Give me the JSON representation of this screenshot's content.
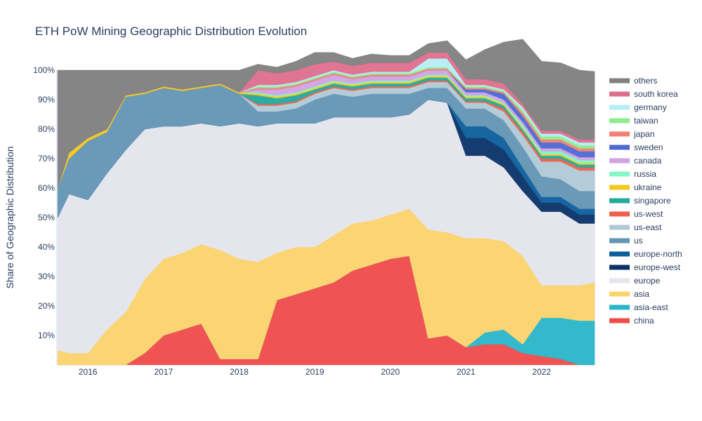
{
  "chart_data": {
    "type": "area",
    "stacked": true,
    "normalized": "percent",
    "title": "ETH PoW Mining Geographic Distribution Evolution",
    "xlabel": "",
    "ylabel": "Share of Geographic Distribution",
    "xlim": [
      2015.58,
      2022.71
    ],
    "ylim": [
      0,
      100
    ],
    "x_ticks": [
      "2016",
      "2017",
      "2018",
      "2019",
      "2020",
      "2021",
      "2022"
    ],
    "x_tick_values": [
      2016,
      2017,
      2018,
      2019,
      2020,
      2021,
      2022
    ],
    "y_ticks": [
      "10%",
      "20%",
      "30%",
      "40%",
      "50%",
      "60%",
      "70%",
      "80%",
      "90%",
      "100%"
    ],
    "y_tick_values": [
      10,
      20,
      30,
      40,
      50,
      60,
      70,
      80,
      90,
      100
    ],
    "grid": false,
    "legend_position": "right",
    "x": [
      2015.6,
      2015.75,
      2016.0,
      2016.25,
      2016.5,
      2016.75,
      2017.0,
      2017.25,
      2017.5,
      2017.75,
      2018.0,
      2018.25,
      2018.5,
      2018.75,
      2019.0,
      2019.25,
      2019.5,
      2019.75,
      2020.0,
      2020.25,
      2020.5,
      2020.75,
      2021.0,
      2021.25,
      2021.5,
      2021.75,
      2022.0,
      2022.25,
      2022.5,
      2022.7
    ],
    "series": [
      {
        "name": "china",
        "color": "#ef4b4b",
        "values": [
          0,
          0,
          0,
          0,
          0,
          4,
          10,
          12,
          14,
          2,
          2,
          2,
          22,
          24,
          26,
          28,
          32,
          34,
          36,
          37,
          9,
          10,
          6,
          7,
          7,
          4,
          3,
          2,
          0,
          0
        ]
      },
      {
        "name": "asia-east",
        "color": "#2ab6c9",
        "values": [
          0,
          0,
          0,
          0,
          0,
          0,
          0,
          0,
          0,
          0,
          0,
          0,
          0,
          0,
          0,
          0,
          0,
          0,
          0,
          0,
          0,
          0,
          0,
          4,
          5,
          3,
          13,
          14,
          15,
          15
        ]
      },
      {
        "name": "asia",
        "color": "#fcd46b",
        "values": [
          5,
          4,
          4,
          12,
          18,
          25,
          26,
          26,
          27,
          37,
          34,
          33,
          16,
          16,
          14,
          16,
          16,
          15,
          15,
          16,
          37,
          35,
          37,
          32,
          30,
          30,
          11,
          11,
          12,
          13
        ]
      },
      {
        "name": "europe",
        "color": "#e5e5ec",
        "values": [
          45,
          54,
          52,
          53,
          55,
          51,
          45,
          43,
          41,
          42,
          46,
          46,
          44,
          42,
          42,
          40,
          36,
          35,
          33,
          32,
          44,
          44,
          28,
          28,
          25,
          22,
          25,
          25,
          21,
          20
        ]
      },
      {
        "name": "europe-west",
        "color": "#0a3366",
        "values": [
          0,
          0,
          0,
          0,
          0,
          0,
          0,
          0,
          0,
          0,
          0,
          0,
          0,
          0,
          0,
          0,
          0,
          0,
          0,
          0,
          0,
          0,
          6,
          6,
          6,
          5,
          3,
          3,
          3,
          3
        ]
      },
      {
        "name": "europe-north",
        "color": "#0c5f9c",
        "values": [
          0,
          0,
          0,
          0,
          0,
          0,
          0,
          0,
          0,
          0,
          0,
          0,
          0,
          0,
          0,
          0,
          0,
          0,
          0,
          0,
          0,
          0,
          4,
          4,
          4,
          3,
          2,
          2,
          2,
          2
        ]
      },
      {
        "name": "us",
        "color": "#6396b4",
        "values": [
          10,
          12,
          20,
          14,
          18,
          12,
          13,
          12,
          12,
          14,
          10,
          5,
          4,
          5,
          8,
          8,
          7,
          8,
          8,
          7,
          4,
          5,
          6,
          6,
          6,
          7,
          7,
          6,
          6,
          6
        ]
      },
      {
        "name": "us-east",
        "color": "#b1c9d6",
        "values": [
          0,
          0,
          0,
          0,
          0,
          0,
          0,
          0,
          0,
          0,
          0,
          2,
          2,
          2,
          2,
          2,
          2,
          2,
          2,
          2,
          2,
          2,
          2,
          2,
          3,
          4,
          5,
          6,
          7,
          7
        ]
      },
      {
        "name": "us-west",
        "color": "#f0604d",
        "values": [
          0,
          0,
          0,
          0,
          0,
          0,
          0,
          0,
          0,
          0,
          0,
          0.5,
          0.5,
          0.5,
          0.5,
          0.5,
          0.5,
          0.5,
          0.5,
          0.5,
          0.5,
          0.5,
          0.5,
          0.5,
          1,
          1,
          1,
          1,
          1,
          1
        ]
      },
      {
        "name": "singapore",
        "color": "#25a99a",
        "values": [
          0,
          0,
          0,
          0,
          0,
          0,
          0,
          0,
          0,
          0,
          0,
          3,
          2,
          2,
          1,
          1,
          1,
          1,
          1,
          1,
          1,
          1,
          1,
          1,
          1,
          1,
          1,
          1,
          1,
          1
        ]
      },
      {
        "name": "ukraine",
        "color": "#f6c81e",
        "values": [
          0,
          2,
          1,
          1,
          0.5,
          0.5,
          0.5,
          0.5,
          0.5,
          0.5,
          0.5,
          0.5,
          0.5,
          0.5,
          0.5,
          0.5,
          0.5,
          0.5,
          0.5,
          0.5,
          0.5,
          0.5,
          0.5,
          0.5,
          0.5,
          0.5,
          0.5,
          0.5,
          0.5,
          0.5
        ]
      },
      {
        "name": "russia",
        "color": "#83f7c4",
        "values": [
          0,
          0,
          0,
          0,
          0,
          0,
          0,
          0,
          0,
          0,
          0,
          0.5,
          0.5,
          0.5,
          0.5,
          0.5,
          0.5,
          0.5,
          0.5,
          0.5,
          0.5,
          0.5,
          0.5,
          0.5,
          0.5,
          1,
          1,
          1,
          1,
          1
        ]
      },
      {
        "name": "canada",
        "color": "#d3a2e3",
        "values": [
          0,
          0,
          0,
          0,
          0,
          0,
          0,
          0,
          0,
          0,
          0,
          1,
          2,
          2,
          2,
          2,
          1.5,
          1.5,
          1.5,
          1.5,
          1.5,
          1.5,
          1,
          1,
          1,
          1,
          1,
          1,
          1,
          1
        ]
      },
      {
        "name": "sweden",
        "color": "#4d6ad4",
        "values": [
          0,
          0,
          0,
          0,
          0,
          0,
          0,
          0,
          0,
          0,
          0,
          0,
          0,
          0,
          0,
          0,
          0,
          0,
          0,
          0,
          0,
          0,
          1,
          1,
          2,
          2,
          2,
          2,
          2,
          2
        ]
      },
      {
        "name": "japan",
        "color": "#f58075",
        "values": [
          0,
          0,
          0,
          0,
          0,
          0,
          0,
          0,
          0,
          0,
          0,
          0.5,
          0.5,
          0.5,
          0.5,
          0.5,
          0.5,
          0.5,
          0.5,
          0.5,
          0.5,
          0.5,
          0.5,
          0.5,
          0.5,
          1,
          1,
          1,
          1,
          1
        ]
      },
      {
        "name": "taiwan",
        "color": "#8eec8e",
        "values": [
          0,
          0,
          0,
          0,
          0,
          0,
          0,
          0,
          0,
          0,
          0,
          0.5,
          0.5,
          0.5,
          0.5,
          0.5,
          0.5,
          0.5,
          0.5,
          0.5,
          0.5,
          0.5,
          0.5,
          0.5,
          0.5,
          1,
          1,
          1,
          1,
          1
        ]
      },
      {
        "name": "germany",
        "color": "#b5eef3",
        "values": [
          0,
          0,
          0,
          0,
          0,
          0,
          0,
          0,
          0,
          0,
          0,
          0.5,
          0.5,
          0.5,
          0.5,
          0.5,
          0.5,
          0.5,
          0.5,
          0.5,
          3,
          3,
          0.5,
          0.5,
          0.5,
          1,
          1,
          1,
          1,
          1
        ]
      },
      {
        "name": "south korea",
        "color": "#df6e8d",
        "values": [
          0,
          0,
          0,
          0,
          0,
          0,
          0,
          0,
          0,
          0,
          0,
          5,
          4,
          4,
          4,
          3,
          3,
          3,
          3,
          3,
          2,
          2,
          2,
          2,
          2,
          1,
          1,
          1,
          1,
          1
        ]
      },
      {
        "name": "others",
        "color": "#808080",
        "values": [
          40,
          28,
          23,
          20,
          8.5,
          7.5,
          5.5,
          6.5,
          5.5,
          4.5,
          7.5,
          2,
          2,
          3,
          4,
          3,
          2.5,
          3,
          2.5,
          2.5,
          3,
          4,
          6.5,
          10,
          14,
          22,
          23.5,
          23,
          23.5,
          23
        ]
      }
    ]
  }
}
